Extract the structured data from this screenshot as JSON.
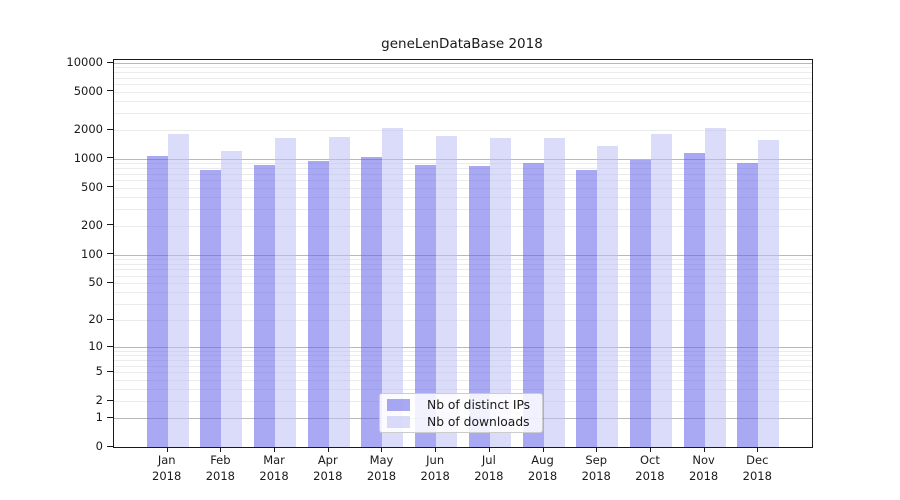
{
  "title": "geneLenDataBase 2018",
  "chart_data": {
    "type": "bar",
    "title": "geneLenDataBase 2018",
    "categories": [
      "Jan",
      "Feb",
      "Mar",
      "Apr",
      "May",
      "Jun",
      "Jul",
      "Aug",
      "Sep",
      "Oct",
      "Nov",
      "Dec"
    ],
    "category_year": "2018",
    "series": [
      {
        "name": "Nb of distinct IPs",
        "color": "rgba(97,97,233,0.55)",
        "values": [
          1080,
          770,
          860,
          950,
          1040,
          860,
          850,
          910,
          770,
          980,
          1160,
          910
        ]
      },
      {
        "name": "Nb of downloads",
        "color": "rgba(190,190,246,0.55)",
        "values": [
          1800,
          1210,
          1660,
          1690,
          2090,
          1750,
          1660,
          1670,
          1370,
          1840,
          2120,
          1570
        ]
      }
    ],
    "xlabel": "",
    "ylabel": "",
    "yscale": "symlog (log1p)",
    "yticks": [
      0,
      1,
      2,
      5,
      10,
      20,
      50,
      100,
      200,
      500,
      1000,
      2000,
      5000,
      10000
    ],
    "ylim": [
      0,
      10750
    ],
    "grid": true,
    "grid_major_color": "#b9b9b9",
    "grid_minor_color": "#ebebeb",
    "legend_position": "lower center"
  }
}
